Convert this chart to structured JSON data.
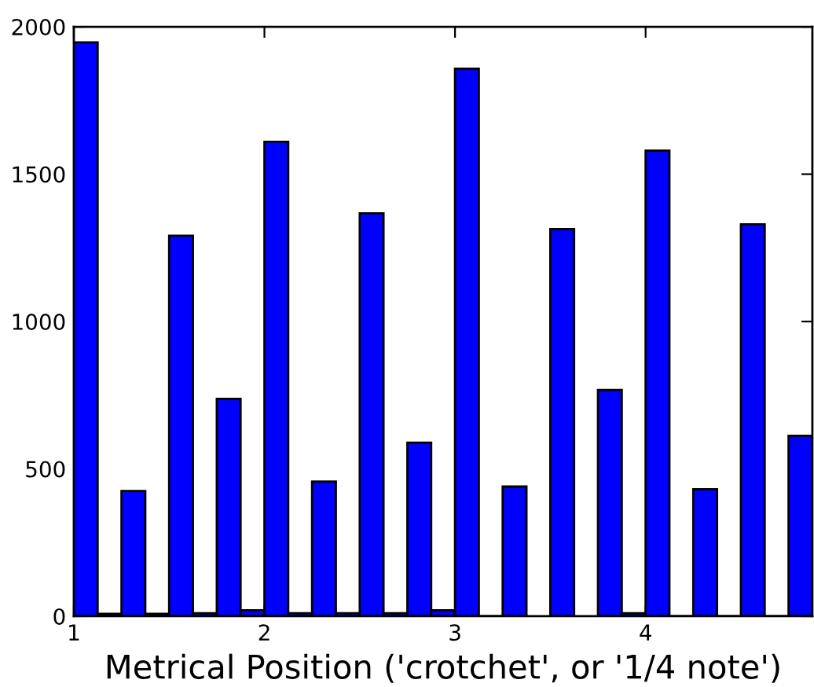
{
  "chart_data": {
    "type": "histogram",
    "xlabel": "Metrical Position ('crotchet', or '1/4 note')",
    "bins": [
      1,
      1.125,
      1.25,
      1.375,
      1.5,
      1.625,
      1.75,
      1.875,
      2,
      2.125,
      2.25,
      2.375,
      2.5,
      2.625,
      2.75,
      2.875,
      3,
      3.125,
      3.25,
      3.375,
      3.5,
      3.625,
      3.75,
      3.875,
      4,
      4.125,
      4.25,
      4.375,
      4.5,
      4.625,
      4.75,
      4.875
    ],
    "values": [
      1947,
      8,
      425,
      8,
      1291,
      10,
      738,
      20,
      1610,
      10,
      457,
      10,
      1367,
      10,
      589,
      20,
      1858,
      0,
      440,
      null,
      1314,
      null,
      768,
      10,
      1580,
      0,
      431,
      0,
      1330,
      0,
      612
    ],
    "color": "#0000ff",
    "xlim": [
      1,
      4.875
    ],
    "xticks": [
      1,
      2,
      3,
      4
    ],
    "ylim": [
      0,
      2000
    ],
    "yticks": [
      0,
      500,
      1000,
      1500,
      2000
    ],
    "grid": false
  }
}
